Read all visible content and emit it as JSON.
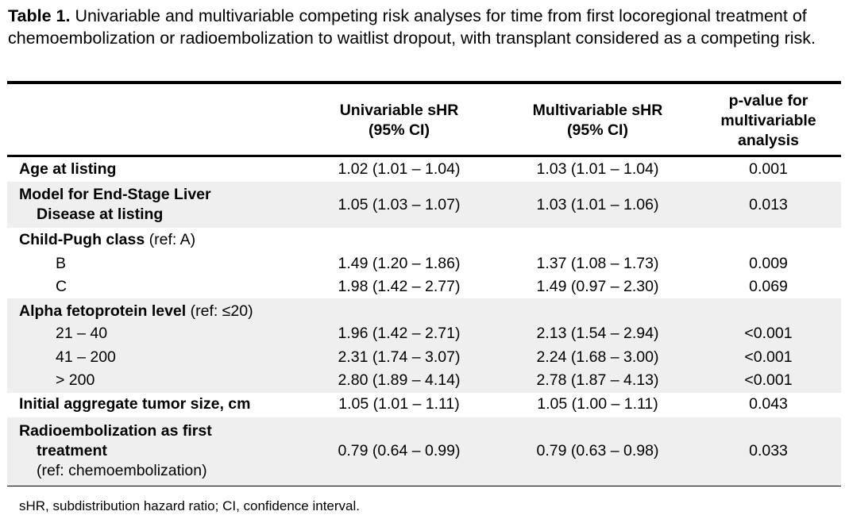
{
  "caption": {
    "label": "Table 1.",
    "text": " Univariable and multivariable competing risk analyses for time from first locoregional treatment of chemoembolization or radioembolization to waitlist dropout, with transplant considered as a competing risk."
  },
  "columns": {
    "univariable_l1": "Univariable sHR",
    "univariable_l2": "(95% CI)",
    "multivariable_l1": "Multivariable sHR",
    "multivariable_l2": "(95% CI)",
    "pvalue_l1": "p-value for",
    "pvalue_l2": "multivariable",
    "pvalue_l3": "analysis"
  },
  "rows": {
    "age": {
      "label": "Age at listing",
      "uni": "1.02 (1.01 – 1.04)",
      "multi": "1.03 (1.01 – 1.04)",
      "p": "0.001"
    },
    "meld": {
      "label_l1": "Model for End-Stage Liver",
      "label_l2": "Disease at listing",
      "uni": "1.05 (1.03 – 1.07)",
      "multi": "1.03 (1.01 – 1.06)",
      "p": "0.013"
    },
    "child_pugh": {
      "label": "Child-Pugh class",
      "ref": " (ref: A)",
      "b": {
        "label": "B",
        "uni": "1.49 (1.20 – 1.86)",
        "multi": "1.37 (1.08 – 1.73)",
        "p": "0.009"
      },
      "c": {
        "label": "C",
        "uni": "1.98 (1.42 – 2.77)",
        "multi": "1.49 (0.97 – 2.30)",
        "p": "0.069"
      }
    },
    "afp": {
      "label": "Alpha fetoprotein level",
      "ref": " (ref: ≤20)",
      "r1": {
        "label": "21 – 40",
        "uni": "1.96 (1.42 – 2.71)",
        "multi": "2.13 (1.54 – 2.94)",
        "p": "<0.001"
      },
      "r2": {
        "label": "41 – 200",
        "uni": "2.31 (1.74 – 3.07)",
        "multi": "2.24 (1.68 – 3.00)",
        "p": "<0.001"
      },
      "r3": {
        "label": "> 200",
        "uni": "2.80 (1.89 – 4.14)",
        "multi": "2.78 (1.87 – 4.13)",
        "p": "<0.001"
      }
    },
    "tumor": {
      "label": "Initial aggregate tumor size, cm",
      "uni": "1.05 (1.01 – 1.11)",
      "multi": "1.05 (1.00 – 1.11)",
      "p": "0.043"
    },
    "radio": {
      "label_l1": "Radioembolization as first",
      "label_l2": "treatment",
      "label_l3": "(ref: chemoembolization)",
      "uni": "0.79 (0.64 – 0.99)",
      "multi": "0.79 (0.63 – 0.98)",
      "p": "0.033"
    }
  },
  "footnote": "sHR, subdistribution hazard ratio; CI, confidence interval.",
  "colors": {
    "band": "#efefef",
    "rule": "#000000"
  }
}
